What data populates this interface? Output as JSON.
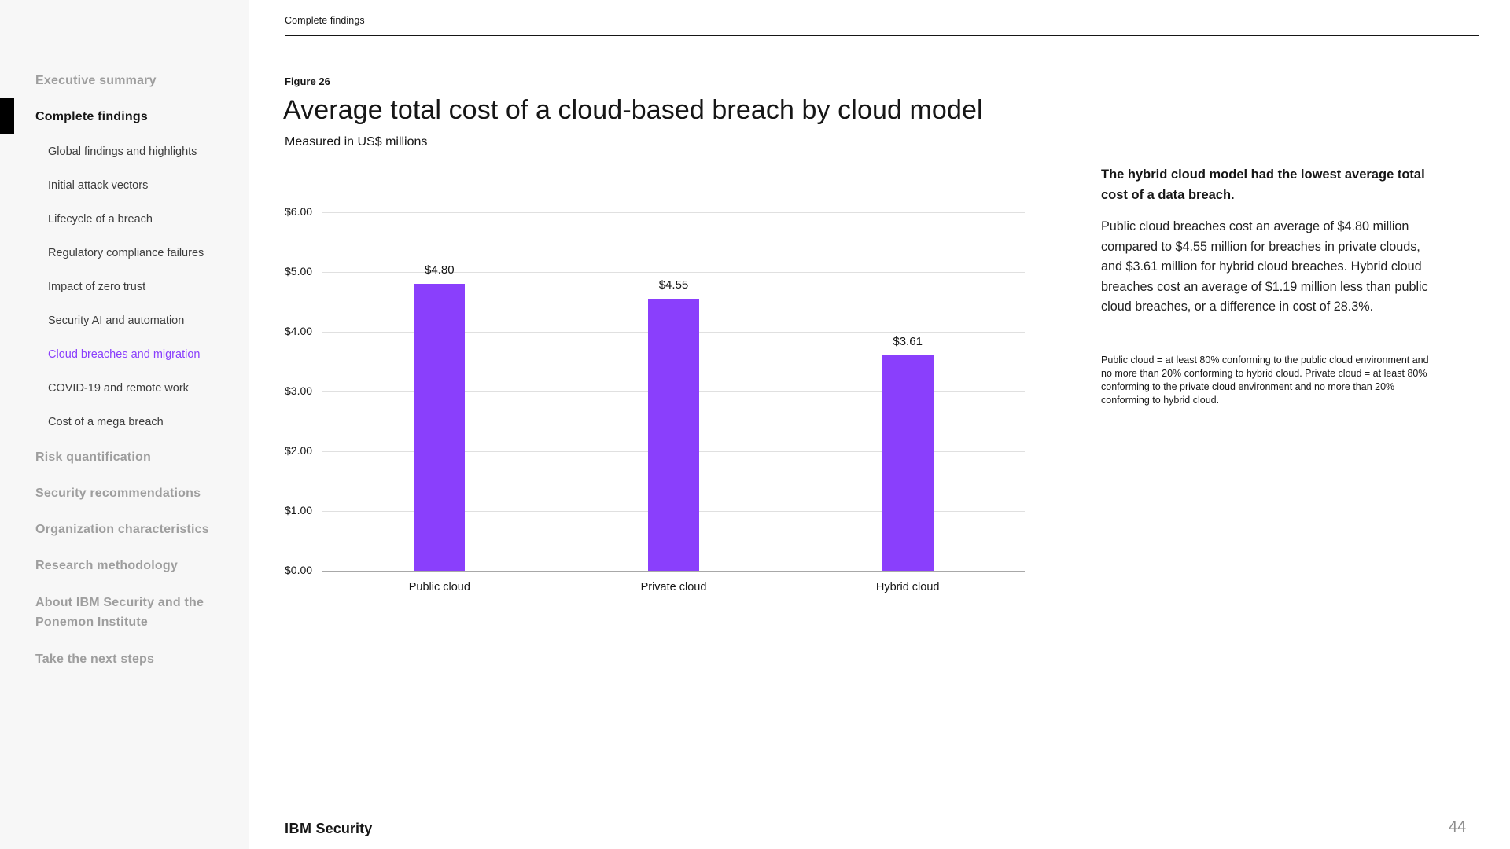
{
  "colors": {
    "accent": "#8a3ffc",
    "sidebar_bg": "#f7f7f7",
    "text": "#161616",
    "muted_nav": "#9e9e9e",
    "gridline": "#e0e0e0",
    "page_number_gray": "#8d8d8d"
  },
  "header": {
    "section_label": "Complete findings"
  },
  "sidebar": {
    "items": [
      {
        "id": "executive-summary",
        "label": "Executive summary",
        "type": "top",
        "state": "default"
      },
      {
        "id": "complete-findings",
        "label": "Complete findings",
        "type": "top",
        "state": "active"
      },
      {
        "id": "global-findings-and-highlights",
        "label": "Global findings and highlights",
        "type": "sub",
        "state": "default"
      },
      {
        "id": "initial-attack-vectors",
        "label": "Initial attack vectors",
        "type": "sub",
        "state": "default"
      },
      {
        "id": "lifecycle-of-a-breach",
        "label": "Lifecycle of a breach",
        "type": "sub",
        "state": "default"
      },
      {
        "id": "regulatory-compliance-failures",
        "label": "Regulatory compliance failures",
        "type": "sub",
        "state": "default"
      },
      {
        "id": "impact-of-zero-trust",
        "label": "Impact of zero trust",
        "type": "sub",
        "state": "default"
      },
      {
        "id": "security-ai-and-automation",
        "label": "Security AI and automation",
        "type": "sub",
        "state": "default"
      },
      {
        "id": "cloud-breaches-and-migration",
        "label": "Cloud breaches and migration",
        "type": "sub",
        "state": "active"
      },
      {
        "id": "covid-19-and-remote-work",
        "label": "COVID-19 and remote work",
        "type": "sub",
        "state": "default"
      },
      {
        "id": "cost-of-a-mega-breach",
        "label": "Cost of a mega breach",
        "type": "sub",
        "state": "default"
      },
      {
        "id": "risk-quantification",
        "label": "Risk quantification",
        "type": "top",
        "state": "default"
      },
      {
        "id": "security-recommendations",
        "label": "Security recommendations",
        "type": "top",
        "state": "default"
      },
      {
        "id": "organization-characteristics",
        "label": "Organization characteristics",
        "type": "top",
        "state": "default"
      },
      {
        "id": "research-methodology",
        "label": "Research methodology",
        "type": "top",
        "state": "default"
      },
      {
        "id": "about-ibm-security-and-the-ponemon-institute",
        "label": "About IBM Security and the Ponemon Institute",
        "type": "top",
        "state": "default",
        "multiline": true
      },
      {
        "id": "take-the-next-steps",
        "label": "Take the next steps",
        "type": "top",
        "state": "default"
      }
    ]
  },
  "figure": {
    "label": "Figure 26",
    "title": "Average total cost of a cloud-based breach by cloud model",
    "subtitle": "Measured in US$ millions"
  },
  "chart_data": {
    "type": "bar",
    "title": "Average total cost of a cloud-based breach by cloud model",
    "subtitle": "Measured in US$ millions",
    "categories": [
      "Public cloud",
      "Private cloud",
      "Hybrid cloud"
    ],
    "values": [
      4.8,
      4.55,
      3.61
    ],
    "value_labels": [
      "$4.80",
      "$4.55",
      "$3.61"
    ],
    "xlabel": "",
    "ylabel": "US$ millions",
    "ylim": [
      0,
      6
    ],
    "yticks": [
      6,
      5,
      4,
      3,
      2,
      1,
      0
    ],
    "ytick_labels": [
      "$6.00",
      "$5.00",
      "$4.00",
      "$3.00",
      "$2.00",
      "$1.00",
      "$0.00"
    ],
    "bar_color": "#8a3ffc",
    "grid": true,
    "legend": false
  },
  "aside": {
    "heading": "The hybrid cloud model had the lowest average total cost of a data breach.",
    "body": "Public cloud breaches cost an average of $4.80 million compared to $4.55 million for breaches in private clouds, and $3.61 million for hybrid cloud breaches. Hybrid cloud breaches cost an average of $1.19 million less than public cloud breaches, or a difference in cost of 28.3%.",
    "footnote": "Public cloud = at least 80% conforming to the public cloud environment and no more than 20% conforming to hybrid cloud. Private cloud = at least 80% conforming to the private cloud environment and no more than 20% conforming to hybrid cloud."
  },
  "footer": {
    "brand_primary": "IBM",
    "brand_secondary": "Security",
    "page_number": "44"
  }
}
